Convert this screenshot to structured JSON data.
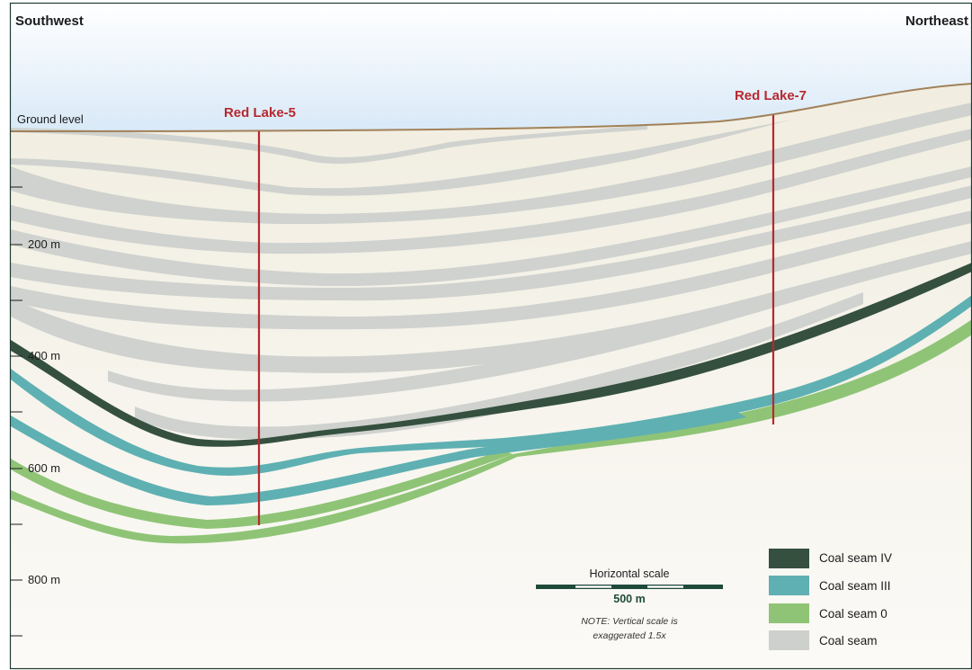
{
  "directions": {
    "left": "Southwest",
    "right": "Northeast"
  },
  "ground_label": "Ground level",
  "wells": [
    {
      "name": "Red Lake-5"
    },
    {
      "name": "Red Lake-7"
    }
  ],
  "depth_ticks": [
    "200 m",
    "400 m",
    "600 m",
    "800 m"
  ],
  "legend": [
    {
      "label": "Coal seam IV",
      "color": "#35503f"
    },
    {
      "label": "Coal seam III",
      "color": "#5fb0b2"
    },
    {
      "label": "Coal seam 0",
      "color": "#8fc476"
    },
    {
      "label": "Coal seam",
      "color": "#cdd0cc"
    }
  ],
  "scale": {
    "title": "Horizontal scale",
    "value": "500 m",
    "note_line1": "NOTE: Vertical scale is",
    "note_line2": "exaggerated 1.5x"
  },
  "colors": {
    "well_line": "#b7282e",
    "ground_line": "#a1815a",
    "sky_top": "#dcebf8",
    "earth_top": "#f1ede1",
    "earth_bottom": "#fbfaf6",
    "frame": "#1f3b33"
  }
}
